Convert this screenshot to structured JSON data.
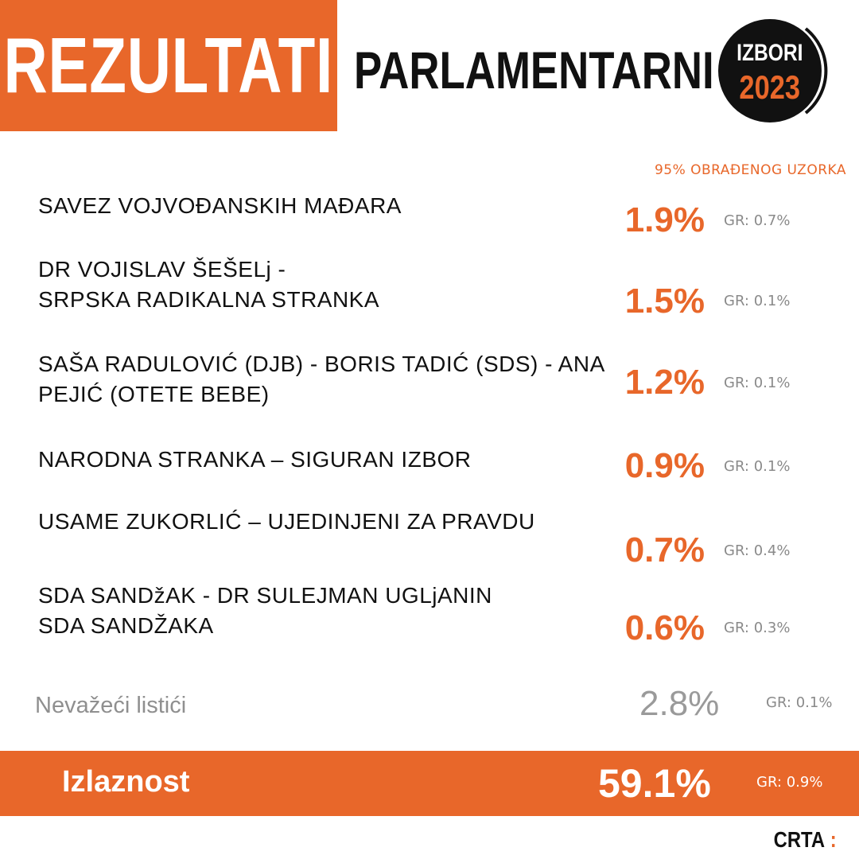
{
  "header": {
    "title": "REZULTATI",
    "subtitle": "PARLAMENTARNI",
    "badge_line1": "IZBORI",
    "badge_line2": "2023"
  },
  "note": "95% OBRAĐENOG UZORKA",
  "results": [
    {
      "line1": "SAVEZ VOJVOĐANSKIH MAĐARA",
      "line2": "",
      "pct": "1.9%",
      "gr": "GR: 0.7%"
    },
    {
      "line1": "DR VOJISLAV ŠEŠELj -",
      "line2": "SRPSKA RADIKALNA STRANKA",
      "pct": "1.5%",
      "gr": "GR: 0.1%"
    },
    {
      "line1": "SAŠA RADULOVIĆ (DJB) - BORIS TADIĆ (SDS) - ANA",
      "line2": "PEJIĆ (OTETE BEBE)",
      "pct": "1.2%",
      "gr": "GR: 0.1%"
    },
    {
      "line1": "NARODNA STRANKA – SIGURAN IZBOR",
      "line2": "",
      "pct": "0.9%",
      "gr": "GR: 0.1%"
    },
    {
      "line1": "USAME ZUKORLIĆ – UJEDINJENI ZA PRAVDU",
      "line2": "",
      "pct": "0.7%",
      "gr": "GR: 0.4%"
    },
    {
      "line1": "SDA SANDžAK - DR SULEJMAN UGLjANIN",
      "line2": "SDA SANDŽAKA",
      "pct": "0.6%",
      "gr": "GR: 0.3%"
    }
  ],
  "invalid": {
    "label": "Nevažeći listići",
    "pct": "2.8%",
    "gr": "GR: 0.1%"
  },
  "turnout": {
    "label": "Izlaznost",
    "pct": "59.1%",
    "gr": "GR: 0.9%"
  },
  "logo": {
    "text": "CRTA",
    "mark": ":"
  },
  "colors": {
    "accent": "#E8672A",
    "dark": "#111111",
    "muted": "#8A8A8A"
  }
}
